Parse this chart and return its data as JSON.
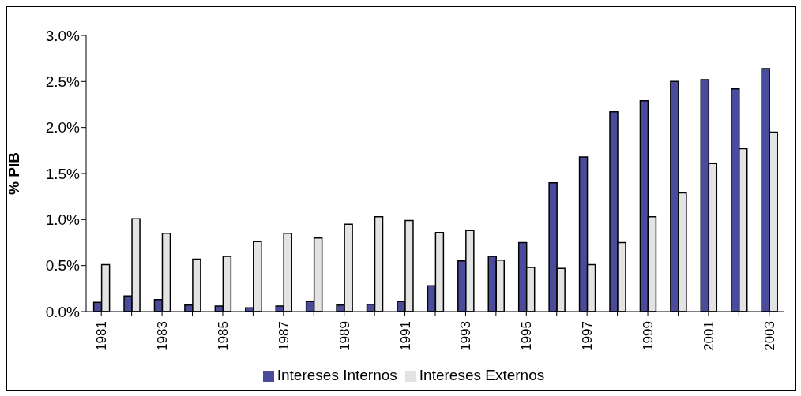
{
  "chart_data": {
    "type": "bar",
    "ylabel": "% PIB",
    "categories": [
      "1981",
      null,
      "1983",
      null,
      "1985",
      null,
      "1987",
      null,
      "1989",
      null,
      "1991",
      null,
      "1993",
      null,
      "1995",
      null,
      "1997",
      null,
      "1999",
      null,
      "2001",
      null,
      "2003"
    ],
    "series": [
      {
        "name": "Intereses Internos",
        "color": "#4b4b9b",
        "values": [
          0.1,
          0.17,
          0.13,
          0.07,
          0.06,
          0.04,
          0.06,
          0.11,
          0.07,
          0.08,
          0.11,
          0.28,
          0.55,
          0.6,
          0.75,
          1.4,
          1.68,
          2.17,
          2.29,
          2.5,
          2.52,
          2.42,
          2.64
        ]
      },
      {
        "name": "Intereses Externos",
        "color": "#e3e3e3",
        "values": [
          0.51,
          1.01,
          0.85,
          0.57,
          0.6,
          0.76,
          0.85,
          0.8,
          0.95,
          1.03,
          0.99,
          0.86,
          0.88,
          0.56,
          0.48,
          0.47,
          0.51,
          0.75,
          1.03,
          1.29,
          1.61,
          1.77,
          1.95
        ]
      }
    ],
    "ylim": [
      0,
      3
    ],
    "yticks": [
      {
        "value": 0,
        "label": "0.0%"
      },
      {
        "value": 0.5,
        "label": "0.5%"
      },
      {
        "value": 1,
        "label": "1.0%"
      },
      {
        "value": 1.5,
        "label": "1.5%"
      },
      {
        "value": 2,
        "label": "2.0%"
      },
      {
        "value": 2.5,
        "label": "2.5%"
      },
      {
        "value": 3,
        "label": "3.0%"
      }
    ],
    "grid": false,
    "legend": "bottom"
  }
}
